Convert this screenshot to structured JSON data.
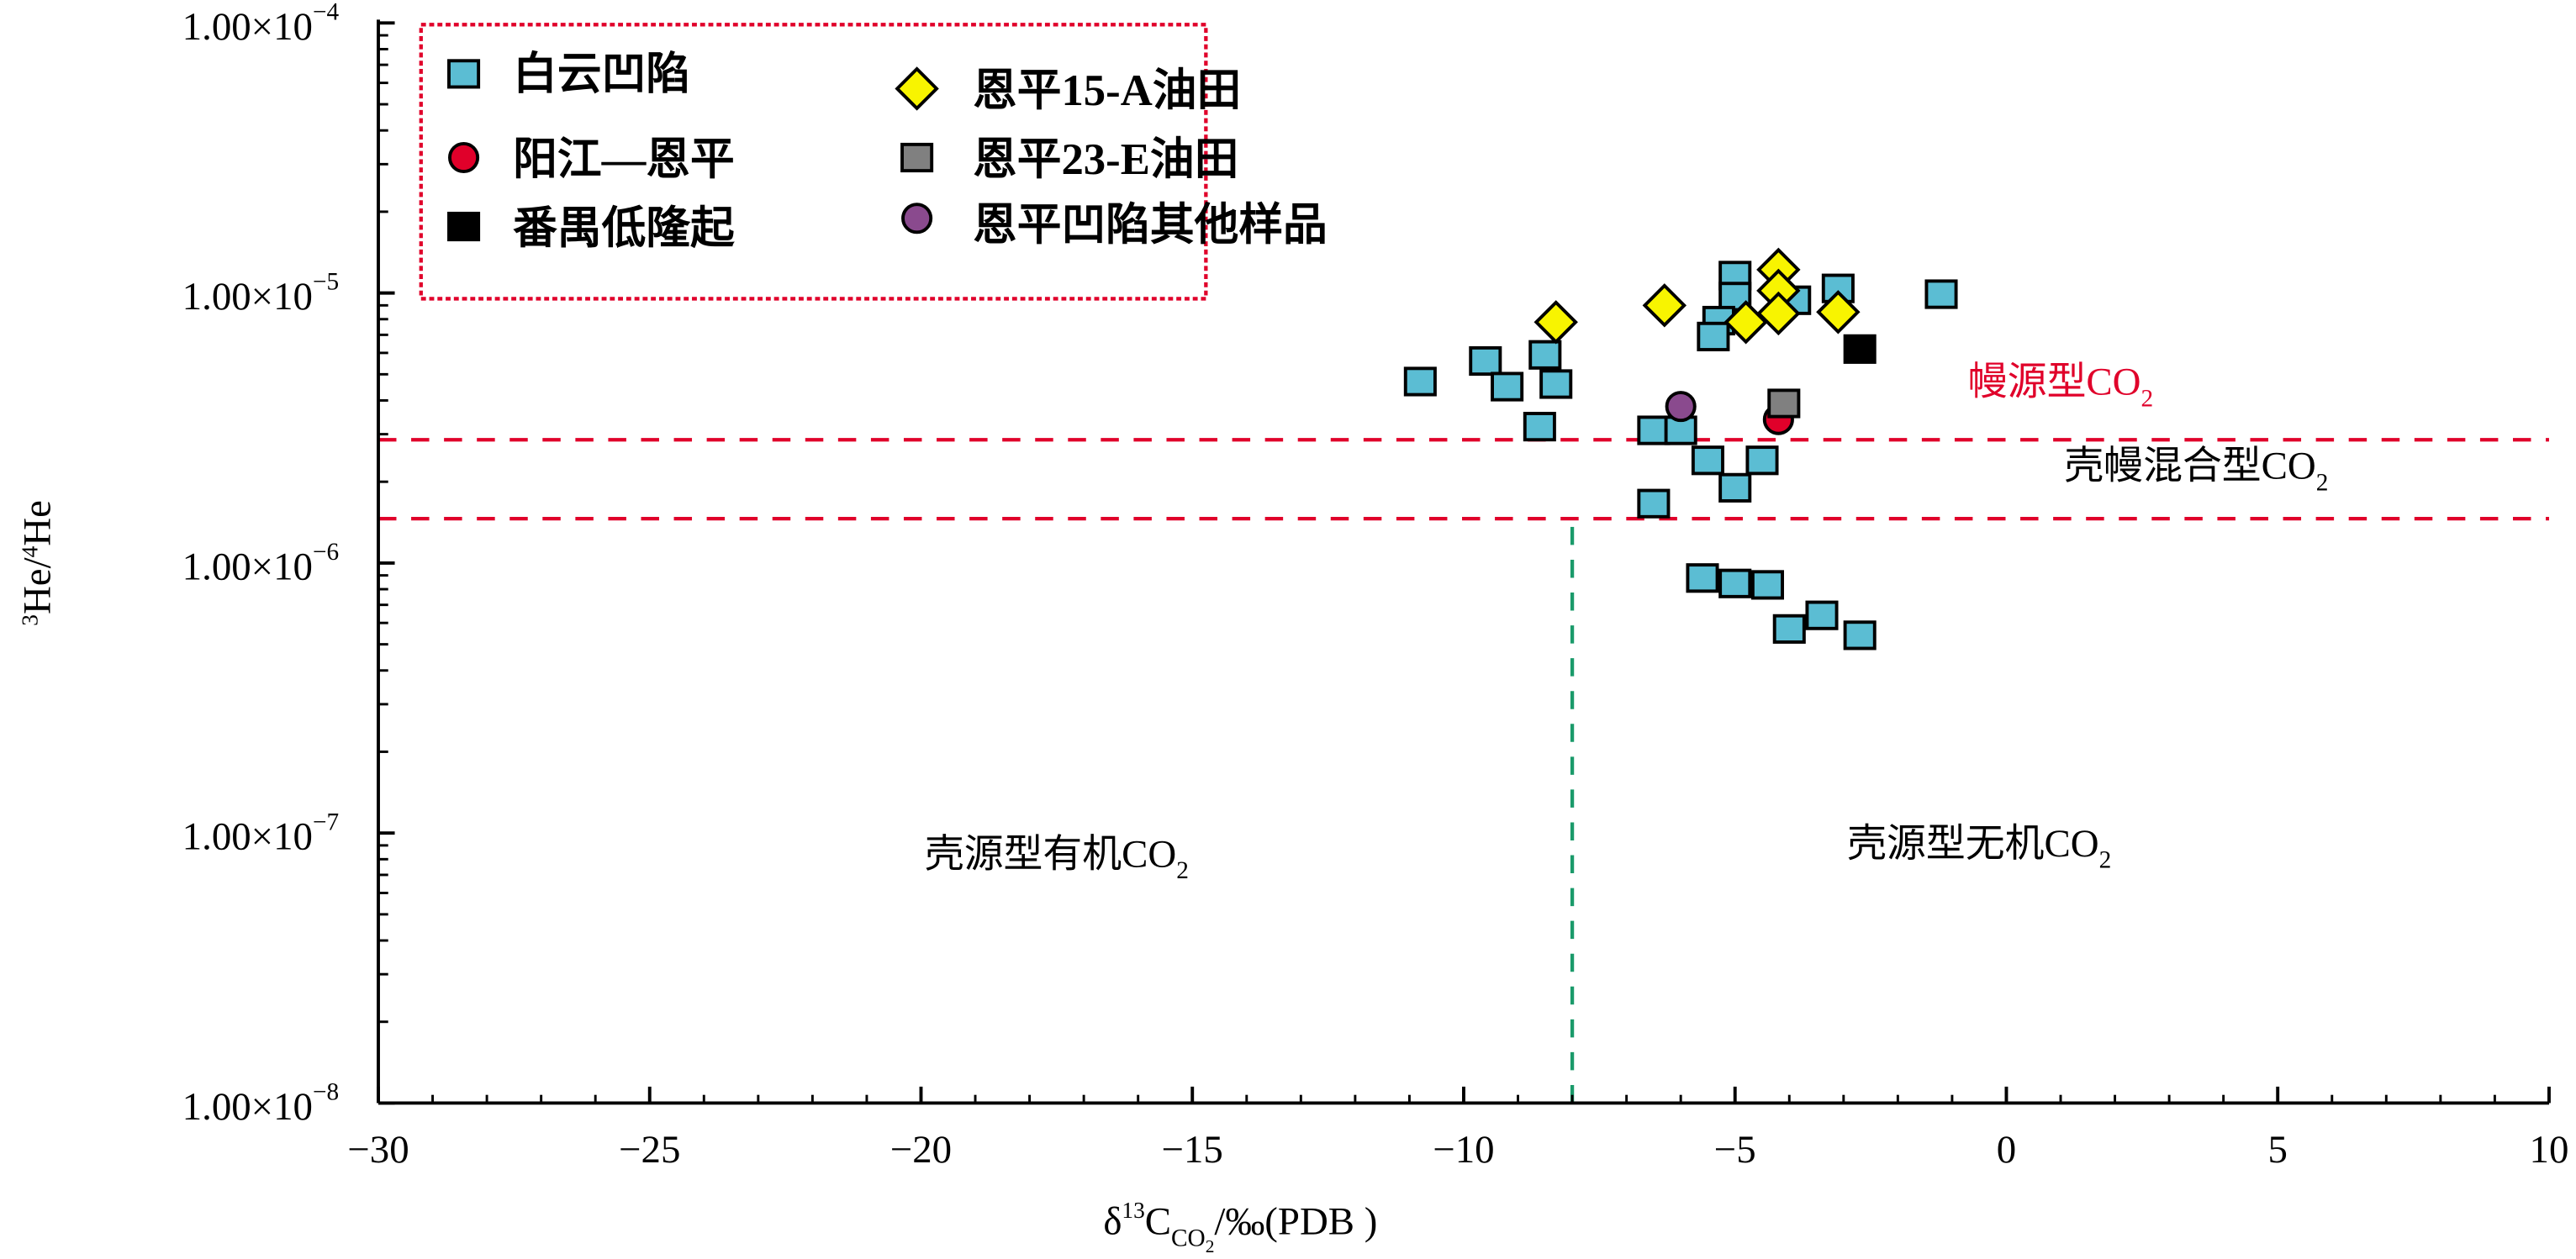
{
  "chart_data": {
    "type": "scatter",
    "xlabel": "δ13CCO2/‰(PDB)",
    "xlabel_parts": {
      "delta": "δ",
      "sup": "13",
      "c": "C",
      "sub": "CO",
      "sub2": "2",
      "rest": "/‰(PDB )"
    },
    "ylabel_parts": {
      "sup1": "3",
      "he1": "He/",
      "sup2": "4",
      "he2": "He"
    },
    "xlim": [
      -30,
      10
    ],
    "ylim": [
      1e-08,
      0.0001
    ],
    "y_scale": "log",
    "x_ticks": [
      {
        "v": -30,
        "label": "−30"
      },
      {
        "v": -25,
        "label": "−25"
      },
      {
        "v": -20,
        "label": "−20"
      },
      {
        "v": -15,
        "label": "−15"
      },
      {
        "v": -10,
        "label": "−10"
      },
      {
        "v": -5,
        "label": "−5"
      },
      {
        "v": 0,
        "label": "0"
      },
      {
        "v": 5,
        "label": "5"
      },
      {
        "v": 10,
        "label": "10"
      }
    ],
    "y_ticks": [
      {
        "v": 0.0001,
        "mant": "1.00×10",
        "exp": "−4"
      },
      {
        "v": 1e-05,
        "mant": "1.00×10",
        "exp": "−5"
      },
      {
        "v": 1e-06,
        "mant": "1.00×10",
        "exp": "−6"
      },
      {
        "v": 1e-07,
        "mant": "1.00×10",
        "exp": "−7"
      },
      {
        "v": 1e-08,
        "mant": "1.00×10",
        "exp": "−8"
      }
    ],
    "grid": false,
    "legend_placement": "top-left",
    "series": [
      {
        "name": "白云凹陷",
        "marker": "square",
        "color": "#5bbdd3",
        "points": [
          [
            -10.8,
            4.7e-06
          ],
          [
            -9.6,
            5.6e-06
          ],
          [
            -9.2,
            4.5e-06
          ],
          [
            -8.5,
            5.9e-06
          ],
          [
            -8.3,
            4.6e-06
          ],
          [
            -8.6,
            3.2e-06
          ],
          [
            -6.5,
            3.1e-06
          ],
          [
            -6.0,
            3.1e-06
          ],
          [
            -6.5,
            1.66e-06
          ],
          [
            -5.5,
            2.4e-06
          ],
          [
            -5.0,
            1.9e-06
          ],
          [
            -4.5,
            2.4e-06
          ],
          [
            -5.6,
            8.8e-07
          ],
          [
            -5.0,
            8.4e-07
          ],
          [
            -4.4,
            8.3e-07
          ],
          [
            -4.0,
            5.7e-07
          ],
          [
            -3.4,
            6.4e-07
          ],
          [
            -2.7,
            5.4e-07
          ],
          [
            -5.0,
            1.16e-05
          ],
          [
            -5.0,
            9.7e-06
          ],
          [
            -5.3,
            7.9e-06
          ],
          [
            -5.4,
            6.9e-06
          ],
          [
            -3.9,
            9.4e-06
          ],
          [
            -3.1,
            1.04e-05
          ],
          [
            -1.2,
            9.9e-06
          ]
        ]
      },
      {
        "name": "阳江—恩平",
        "marker": "circle",
        "color": "#e0002a",
        "points": [
          [
            -4.2,
            3.4e-06
          ]
        ]
      },
      {
        "name": "番禺低隆起",
        "marker": "square",
        "color": "#000000",
        "points": [
          [
            -2.7,
            6.2e-06
          ]
        ]
      },
      {
        "name": "恩平15-A油田",
        "marker": "diamond",
        "color": "#f8f400",
        "points": [
          [
            -8.3,
            7.8e-06
          ],
          [
            -6.3,
            9e-06
          ],
          [
            -4.8,
            7.8e-06
          ],
          [
            -4.2,
            1.22e-05
          ],
          [
            -4.2,
            1.02e-05
          ],
          [
            -4.2,
            8.4e-06
          ],
          [
            -3.1,
            8.5e-06
          ]
        ]
      },
      {
        "name": "恩平23-E油田",
        "marker": "square",
        "color": "#808080",
        "points": [
          [
            -4.1,
            3.9e-06
          ]
        ]
      },
      {
        "name": "恩平凹陷其他样品",
        "marker": "circle",
        "color": "#8a4a8e",
        "points": [
          [
            -6.0,
            3.8e-06
          ]
        ]
      }
    ],
    "reference_lines": [
      {
        "orientation": "horizontal",
        "y": 2.86e-06,
        "color": "#e0002a",
        "style": "dashed"
      },
      {
        "orientation": "horizontal",
        "y": 1.46e-06,
        "color": "#e0002a",
        "style": "dashed"
      },
      {
        "orientation": "vertical",
        "x": -8.0,
        "y_from": 1e-08,
        "y_to": 1.46e-06,
        "color": "#1a9a6a",
        "style": "dashed"
      }
    ],
    "annotations": [
      {
        "text": "幔源型CO",
        "sub": "2",
        "x": 1.0,
        "y": 4.2e-06,
        "color": "#e0002a"
      },
      {
        "text": "壳幔混合型CO",
        "sub": "2",
        "x": 3.5,
        "y": 2.05e-06,
        "color": "#000000"
      },
      {
        "text": "壳源型有机CO",
        "sub": "2",
        "x": -17.5,
        "y": 7.5e-08,
        "color": "#000000"
      },
      {
        "text": "壳源型无机CO",
        "sub": "2",
        "x": -0.5,
        "y": 8.2e-08,
        "color": "#000000"
      }
    ],
    "legend_border_color": "#e0002a"
  }
}
